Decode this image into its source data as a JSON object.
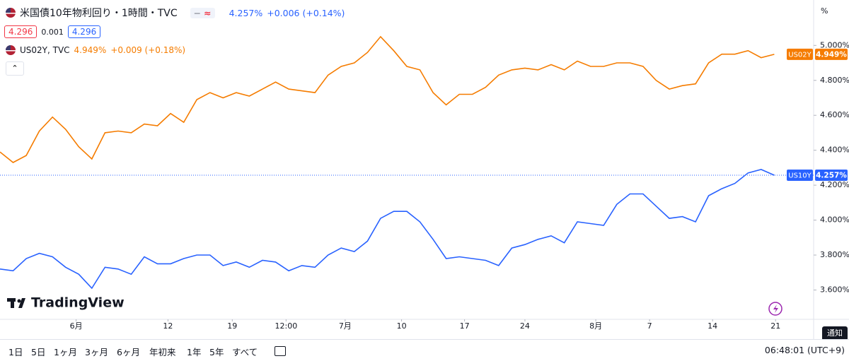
{
  "header": {
    "title": "米国債10年物利回り・1時間・TVC",
    "last": "4.257%",
    "change": "+0.006 (+0.14%)",
    "bid": "4.296",
    "spread": "0.001",
    "ask": "4.296",
    "compare_title": "US02Y, TVC",
    "compare_last": "4.949%",
    "compare_change": "+0.009 (+0.18%)",
    "axis_unit": "%",
    "logo": "TradingView",
    "notify": "通知"
  },
  "toolbar": {
    "ranges": [
      "1日",
      "5日",
      "1ヶ月",
      "3ヶ月",
      "6ヶ月",
      "年初来",
      "1年",
      "5年",
      "すべて"
    ],
    "clock": "06:48:01 (UTC+9)"
  },
  "chart_data": {
    "type": "line",
    "grid": false,
    "x": [
      0,
      1,
      2,
      3,
      4,
      5,
      6,
      7,
      8,
      9,
      10,
      11,
      12,
      13,
      14,
      15,
      16,
      17,
      18,
      19,
      20,
      21,
      22,
      23,
      24,
      25,
      26,
      27,
      28,
      29,
      30,
      31,
      32,
      33,
      34,
      35,
      36,
      37,
      38,
      39,
      40,
      41,
      42,
      43,
      44,
      45,
      46,
      47,
      48,
      49,
      50,
      51,
      52,
      53,
      54,
      55,
      56,
      57,
      58,
      59
    ],
    "xlim": [
      0,
      62
    ],
    "xticks": [
      {
        "value": 5.8,
        "label": "6月"
      },
      {
        "value": 12.8,
        "label": "12"
      },
      {
        "value": 17.7,
        "label": "19"
      },
      {
        "value": 21.8,
        "label": "12:00"
      },
      {
        "value": 26.3,
        "label": "7月"
      },
      {
        "value": 30.6,
        "label": "10"
      },
      {
        "value": 35.4,
        "label": "17"
      },
      {
        "value": 40,
        "label": "24"
      },
      {
        "value": 45.4,
        "label": "8月"
      },
      {
        "value": 49.5,
        "label": "7"
      },
      {
        "value": 54.3,
        "label": "14"
      },
      {
        "value": 59.1,
        "label": "21"
      }
    ],
    "ylim": [
      3.42,
      5.26
    ],
    "yticks": [
      {
        "value": 3.6,
        "label": "3.600%"
      },
      {
        "value": 3.8,
        "label": "3.800%"
      },
      {
        "value": 4.0,
        "label": "4.000%"
      },
      {
        "value": 4.2,
        "label": "4.200%"
      },
      {
        "value": 4.4,
        "label": "4.400%"
      },
      {
        "value": 4.6,
        "label": "4.600%"
      },
      {
        "value": 4.8,
        "label": "4.800%"
      },
      {
        "value": 5.0,
        "label": "5.000%"
      }
    ],
    "series": [
      {
        "name": "US10Y",
        "color": "#2962ff",
        "price_label": "4.257%",
        "values": [
          3.72,
          3.71,
          3.78,
          3.81,
          3.79,
          3.73,
          3.69,
          3.61,
          3.73,
          3.72,
          3.69,
          3.79,
          3.75,
          3.75,
          3.78,
          3.8,
          3.8,
          3.74,
          3.76,
          3.73,
          3.77,
          3.76,
          3.71,
          3.74,
          3.73,
          3.8,
          3.84,
          3.82,
          3.88,
          4.01,
          4.05,
          4.05,
          3.99,
          3.89,
          3.78,
          3.79,
          3.78,
          3.77,
          3.74,
          3.84,
          3.86,
          3.89,
          3.91,
          3.87,
          3.99,
          3.98,
          3.97,
          4.09,
          4.15,
          4.15,
          4.08,
          4.01,
          4.02,
          3.99,
          4.14,
          4.18,
          4.21,
          4.27,
          4.29,
          4.257
        ]
      },
      {
        "name": "US02Y",
        "color": "#f57c00",
        "price_label": "4.949%",
        "values": [
          4.39,
          4.33,
          4.37,
          4.51,
          4.59,
          4.52,
          4.42,
          4.35,
          4.5,
          4.51,
          4.5,
          4.55,
          4.54,
          4.61,
          4.56,
          4.69,
          4.73,
          4.7,
          4.73,
          4.71,
          4.75,
          4.79,
          4.75,
          4.74,
          4.73,
          4.83,
          4.88,
          4.9,
          4.96,
          5.05,
          4.97,
          4.88,
          4.86,
          4.73,
          4.66,
          4.72,
          4.72,
          4.76,
          4.83,
          4.86,
          4.87,
          4.86,
          4.89,
          4.86,
          4.91,
          4.88,
          4.88,
          4.9,
          4.9,
          4.88,
          4.8,
          4.75,
          4.77,
          4.78,
          4.9,
          4.95,
          4.95,
          4.97,
          4.93,
          4.949
        ]
      }
    ]
  }
}
